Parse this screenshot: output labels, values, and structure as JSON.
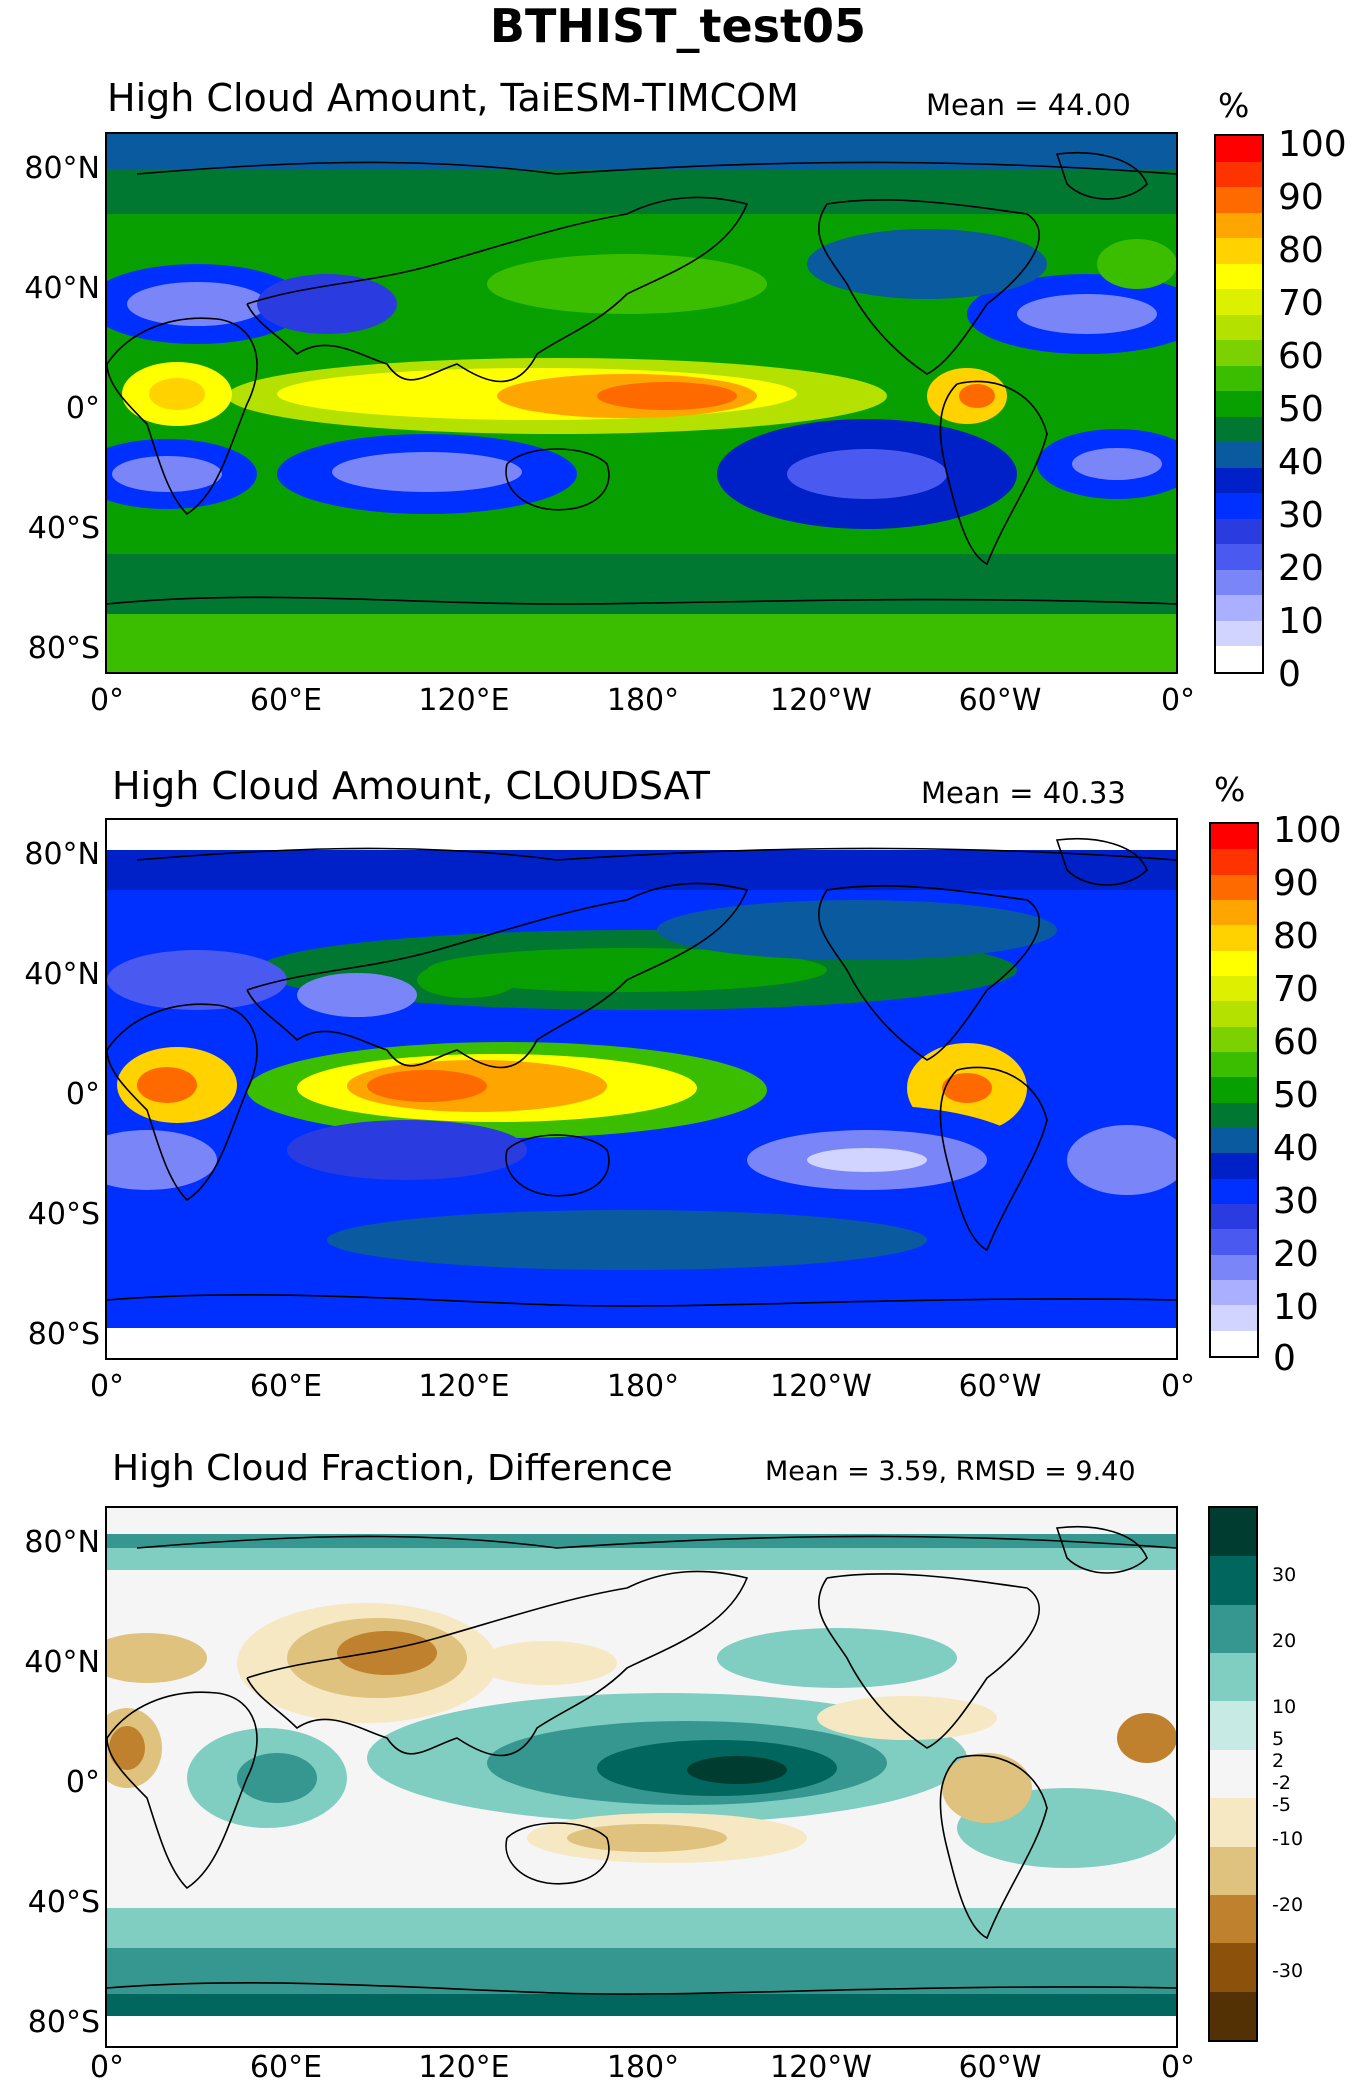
{
  "figure_title": "BTHIST_test05",
  "panels": [
    {
      "title": "High Cloud Amount, TaiESM-TIMCOM",
      "mean": "Mean = 44.00",
      "unit": "%",
      "colorbar_labels": [
        "100",
        "90",
        "80",
        "70",
        "60",
        "50",
        "40",
        "30",
        "20",
        "10",
        "0"
      ],
      "colorbar_colors": [
        "#ff0000",
        "#ff3300",
        "#ff6a00",
        "#ffa500",
        "#ffd200",
        "#ffff00",
        "#dcf000",
        "#b4e100",
        "#7cd200",
        "#3cbe00",
        "#08a000",
        "#007832",
        "#0a5aa0",
        "#0020c8",
        "#0030ff",
        "#2a3ce0",
        "#4a5af0",
        "#7a86f8",
        "#aab0ff",
        "#d0d4ff",
        "#ffffff"
      ]
    },
    {
      "title": "High Cloud Amount, CLOUDSAT",
      "mean": "Mean = 40.33",
      "unit": "%",
      "colorbar_labels": [
        "100",
        "90",
        "80",
        "70",
        "60",
        "50",
        "40",
        "30",
        "20",
        "10",
        "0"
      ],
      "colorbar_colors": [
        "#ff0000",
        "#ff3300",
        "#ff6a00",
        "#ffa500",
        "#ffd200",
        "#ffff00",
        "#dcf000",
        "#b4e100",
        "#7cd200",
        "#3cbe00",
        "#08a000",
        "#007832",
        "#0a5aa0",
        "#0020c8",
        "#0030ff",
        "#2a3ce0",
        "#4a5af0",
        "#7a86f8",
        "#aab0ff",
        "#d0d4ff",
        "#ffffff"
      ]
    },
    {
      "title": "High Cloud Fraction, Difference",
      "mean": "Mean = 3.59, RMSD = 9.40",
      "unit": "%",
      "colorbar_labels": [
        "30",
        "20",
        "10",
        "5",
        "2",
        "-2",
        "-5",
        "-10",
        "-20",
        "-30"
      ],
      "colorbar_colors": [
        "#003c30",
        "#01665e",
        "#35978f",
        "#80cdc1",
        "#c7eae5",
        "#f5f5f5",
        "#f6e8c3",
        "#dfc27d",
        "#bf812d",
        "#8c510a",
        "#543005"
      ]
    }
  ],
  "axes": {
    "lat_labels": [
      "80°N",
      "40°N",
      "0°",
      "40°S",
      "80°S"
    ],
    "lon_labels": [
      "0°",
      "60°E",
      "120°E",
      "180°",
      "120°W",
      "60°W",
      "0°"
    ]
  },
  "map_data": {
    "type": "lat-lon contour maps",
    "lon_range": [
      0,
      360
    ],
    "lat_range": [
      -90,
      90
    ],
    "cloudsat_lat_coverage": [
      -82,
      82
    ]
  }
}
